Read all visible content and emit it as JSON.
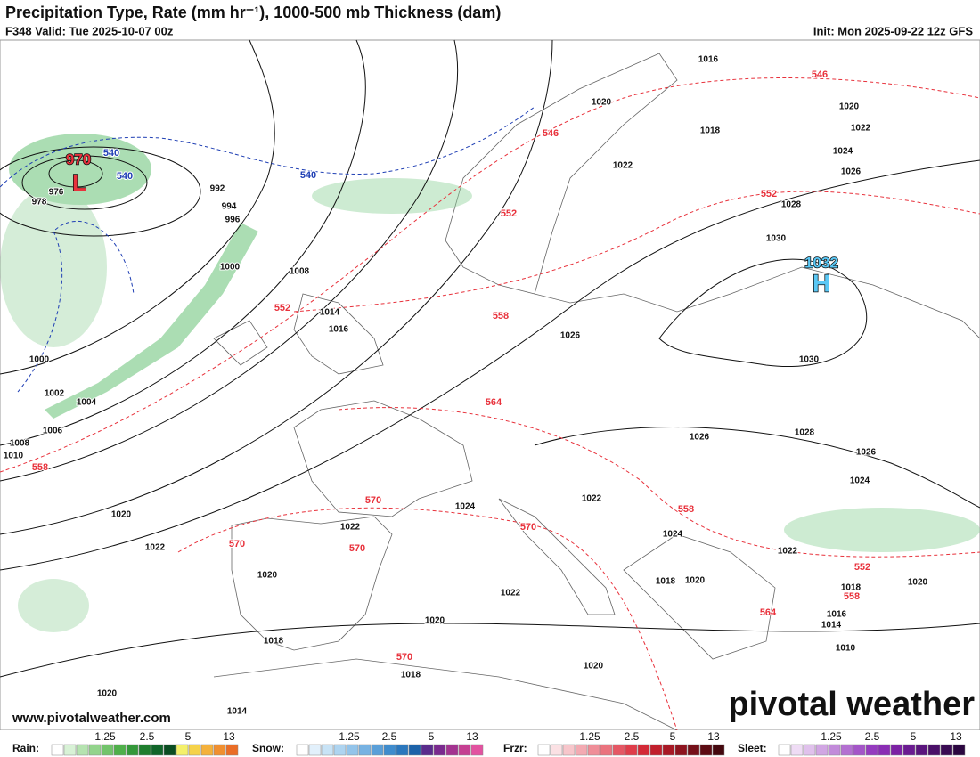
{
  "header": {
    "title": "Precipitation Type, Rate (mm hr⁻¹), 1000-500 mb Thickness (dam)",
    "valid": "F348 Valid: Tue 2025-10-07 00z",
    "init": "Init: Mon 2025-09-22 12z GFS"
  },
  "map": {
    "low": {
      "pressure": "970",
      "symbol": "L"
    },
    "high": {
      "pressure": "1032",
      "symbol": "H"
    },
    "isobar_labels": [
      "1016",
      "1020",
      "1018",
      "1020",
      "1022",
      "1024",
      "1022",
      "1026",
      "1028",
      "1030",
      "992",
      "994",
      "996",
      "1000",
      "1008",
      "1014",
      "1016",
      "976",
      "978",
      "1000",
      "1002",
      "1004",
      "1006",
      "1008",
      "1010",
      "1026",
      "1030",
      "1026",
      "1028",
      "1026",
      "1024",
      "1020",
      "1022",
      "1024",
      "1022",
      "1022",
      "1020",
      "1022",
      "1024",
      "1022",
      "1018",
      "1020",
      "1018",
      "1020",
      "1016",
      "1014",
      "1010",
      "1020",
      "1018",
      "1018",
      "1020",
      "1020",
      "1014"
    ],
    "thickness_labels_red": [
      "546",
      "546",
      "552",
      "552",
      "552",
      "558",
      "564",
      "558",
      "570",
      "570",
      "570",
      "570",
      "558",
      "552",
      "558",
      "564",
      "570"
    ],
    "thickness_labels_blue": [
      "540",
      "540",
      "540"
    ]
  },
  "footer": {
    "url": "www.pivotalweather.com",
    "logo": "pivotal weather"
  },
  "legend": [
    {
      "label": "Rain:",
      "ticks": [
        "1.25",
        "2.5",
        "5",
        "13"
      ]
    },
    {
      "label": "Snow:",
      "ticks": [
        "1.25",
        "2.5",
        "5",
        "13"
      ]
    },
    {
      "label": "Frzr:",
      "ticks": [
        "1.25",
        "2.5",
        "5",
        "13"
      ]
    },
    {
      "label": "Sleet:",
      "ticks": [
        "1.25",
        "2.5",
        "5",
        "13"
      ]
    }
  ]
}
